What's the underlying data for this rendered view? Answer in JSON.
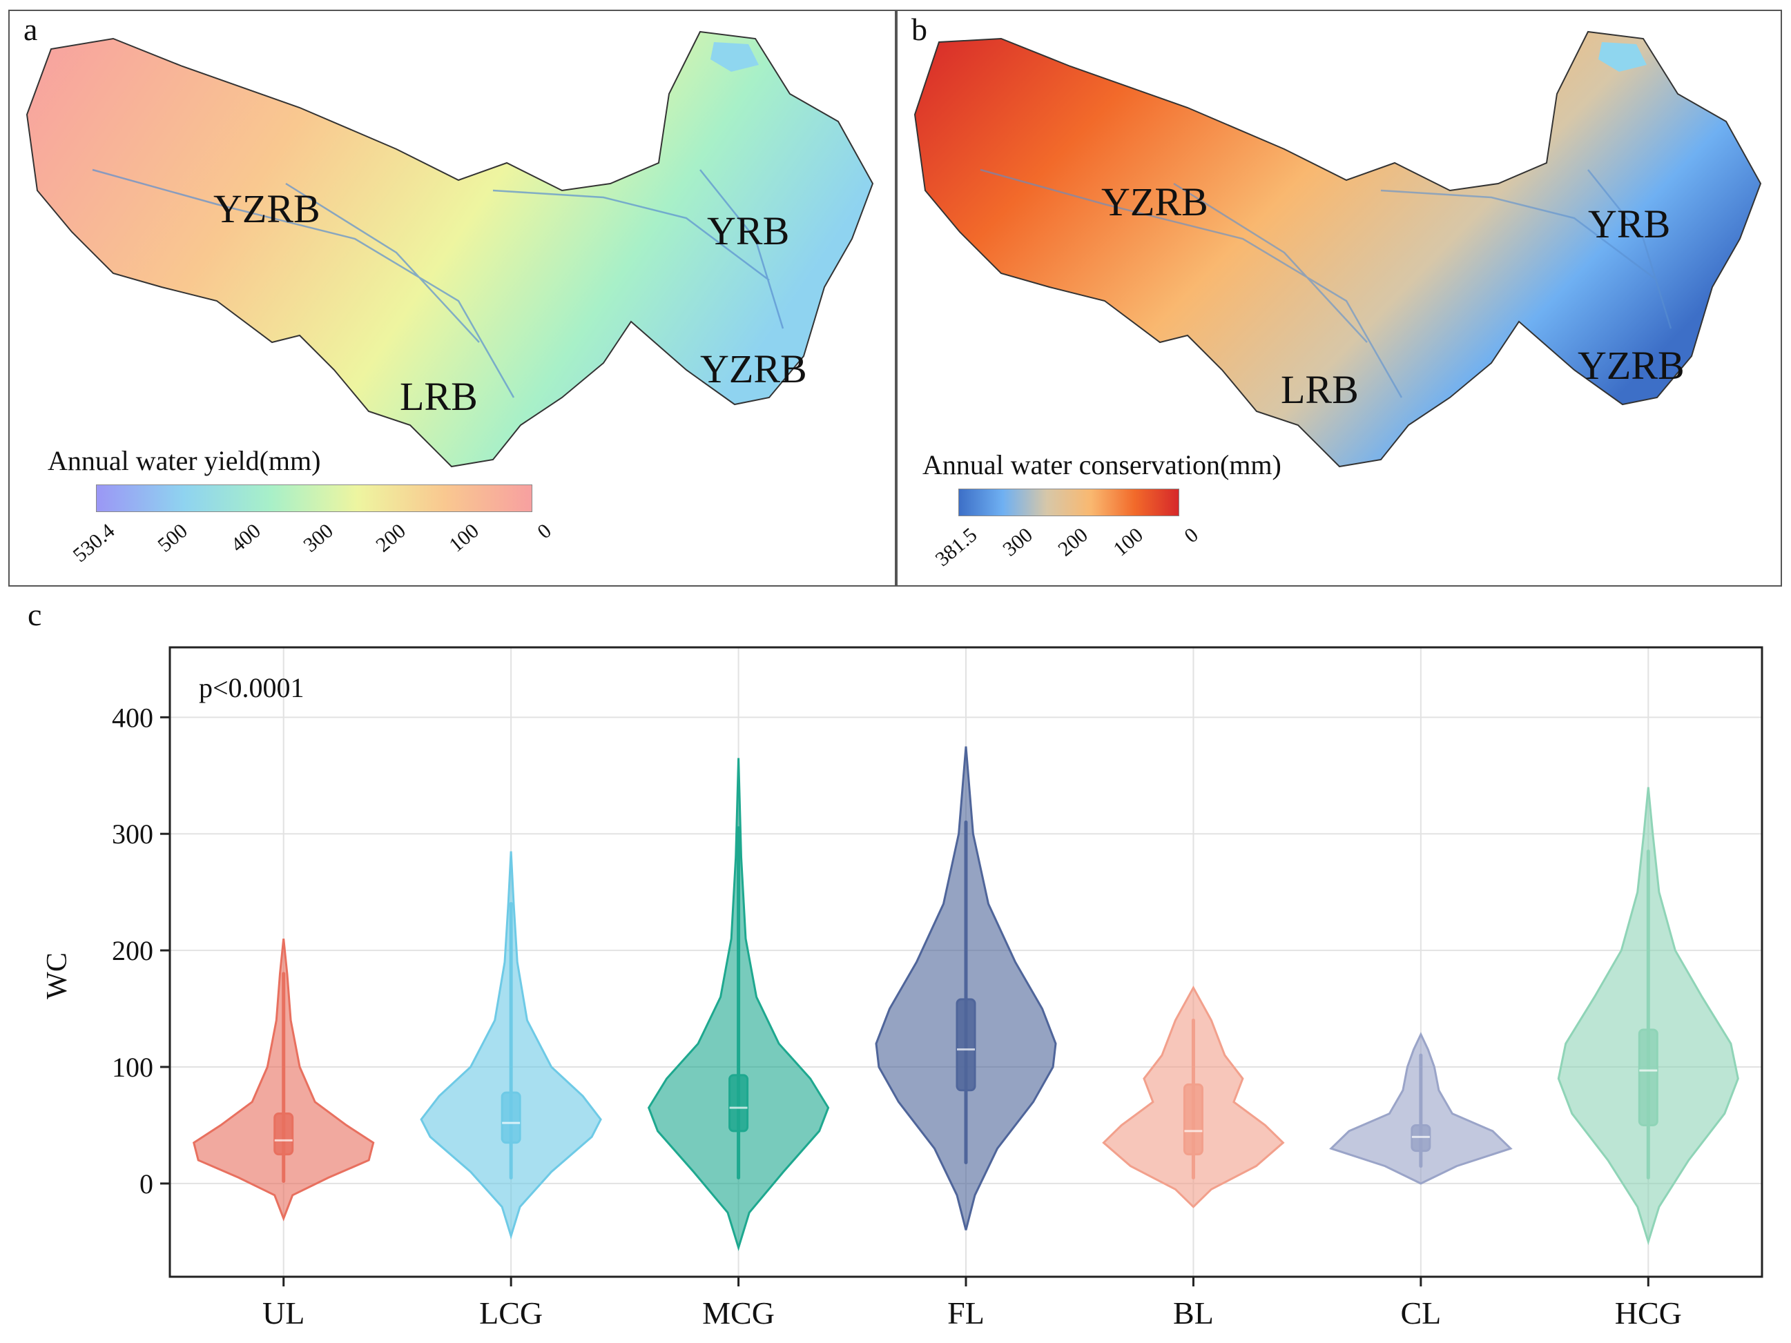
{
  "panel_a": {
    "letter": "a",
    "legend_title": "Annual water yield(mm)",
    "ticks": [
      "530.4",
      "500",
      "400",
      "300",
      "200",
      "100",
      "0"
    ],
    "gradient": [
      "#9b97f5",
      "#8fd3f0",
      "#a8f0c8",
      "#eef5a0",
      "#f9c890",
      "#f7a0a0"
    ],
    "regions": [
      "YZRB",
      "YRB",
      "YZRB",
      "LRB"
    ]
  },
  "panel_b": {
    "letter": "b",
    "legend_title": "Annual water conservation(mm)",
    "ticks": [
      "381.5",
      "300",
      "200",
      "100",
      "0"
    ],
    "gradient": [
      "#3d6fc7",
      "#6fb0f2",
      "#d7c7a8",
      "#f9b870",
      "#f26a2a",
      "#d6282a"
    ],
    "regions": [
      "YZRB",
      "YRB",
      "YZRB",
      "LRB"
    ]
  },
  "panel_c": {
    "letter": "c"
  },
  "chart_data": {
    "type": "violin",
    "annotation": "p<0.0001",
    "ylabel": "WC",
    "xlabel": "",
    "ylim": [
      -80,
      460
    ],
    "yticks": [
      0,
      100,
      200,
      300,
      400
    ],
    "categories": [
      "UL",
      "LCG",
      "MCG",
      "FL",
      "BL",
      "CL",
      "HCG"
    ],
    "series": [
      {
        "name": "UL",
        "color": "#e8705f",
        "min": -30,
        "max": 210,
        "q1": 25,
        "median": 37,
        "q3": 60,
        "whisker_low": 2,
        "whisker_high": 180,
        "profile": [
          [
            -30,
            0.0
          ],
          [
            -10,
            0.1
          ],
          [
            5,
            0.5
          ],
          [
            20,
            0.95
          ],
          [
            35,
            1.0
          ],
          [
            50,
            0.7
          ],
          [
            70,
            0.35
          ],
          [
            100,
            0.18
          ],
          [
            140,
            0.08
          ],
          [
            180,
            0.04
          ],
          [
            210,
            0.0
          ]
        ]
      },
      {
        "name": "LCG",
        "color": "#6ecae6",
        "min": -45,
        "max": 285,
        "q1": 35,
        "median": 52,
        "q3": 78,
        "whisker_low": 5,
        "whisker_high": 240,
        "profile": [
          [
            -45,
            0.0
          ],
          [
            -20,
            0.1
          ],
          [
            10,
            0.45
          ],
          [
            40,
            0.9
          ],
          [
            55,
            1.0
          ],
          [
            75,
            0.8
          ],
          [
            100,
            0.45
          ],
          [
            140,
            0.18
          ],
          [
            190,
            0.07
          ],
          [
            240,
            0.03
          ],
          [
            285,
            0.0
          ]
        ]
      },
      {
        "name": "MCG",
        "color": "#1ea88f",
        "min": -55,
        "max": 365,
        "q1": 45,
        "median": 65,
        "q3": 93,
        "whisker_low": 5,
        "whisker_high": 305,
        "profile": [
          [
            -55,
            0.0
          ],
          [
            -25,
            0.12
          ],
          [
            10,
            0.5
          ],
          [
            45,
            0.9
          ],
          [
            65,
            1.0
          ],
          [
            90,
            0.8
          ],
          [
            120,
            0.45
          ],
          [
            160,
            0.2
          ],
          [
            210,
            0.08
          ],
          [
            280,
            0.03
          ],
          [
            365,
            0.0
          ]
        ]
      },
      {
        "name": "FL",
        "color": "#4f659a",
        "min": -40,
        "max": 375,
        "q1": 80,
        "median": 115,
        "q3": 158,
        "whisker_low": 18,
        "whisker_high": 310,
        "profile": [
          [
            -40,
            0.0
          ],
          [
            -10,
            0.1
          ],
          [
            30,
            0.35
          ],
          [
            70,
            0.75
          ],
          [
            100,
            0.97
          ],
          [
            120,
            1.0
          ],
          [
            150,
            0.85
          ],
          [
            190,
            0.55
          ],
          [
            240,
            0.25
          ],
          [
            300,
            0.08
          ],
          [
            375,
            0.0
          ]
        ]
      },
      {
        "name": "BL",
        "color": "#f2a08c",
        "min": -20,
        "max": 168,
        "q1": 25,
        "median": 45,
        "q3": 85,
        "whisker_low": 5,
        "whisker_high": 140,
        "profile": [
          [
            -20,
            0.0
          ],
          [
            -5,
            0.2
          ],
          [
            15,
            0.7
          ],
          [
            35,
            1.0
          ],
          [
            50,
            0.8
          ],
          [
            70,
            0.45
          ],
          [
            90,
            0.55
          ],
          [
            110,
            0.35
          ],
          [
            140,
            0.2
          ],
          [
            168,
            0.0
          ]
        ]
      },
      {
        "name": "CL",
        "color": "#9aa4c8",
        "min": 0,
        "max": 128,
        "q1": 28,
        "median": 40,
        "q3": 50,
        "whisker_low": 15,
        "whisker_high": 110,
        "profile": [
          [
            0,
            0.0
          ],
          [
            15,
            0.4
          ],
          [
            30,
            1.0
          ],
          [
            45,
            0.8
          ],
          [
            60,
            0.35
          ],
          [
            80,
            0.2
          ],
          [
            100,
            0.15
          ],
          [
            115,
            0.08
          ],
          [
            128,
            0.0
          ]
        ]
      },
      {
        "name": "HCG",
        "color": "#8fd4b7",
        "min": -50,
        "max": 340,
        "q1": 50,
        "median": 97,
        "q3": 132,
        "whisker_low": 5,
        "whisker_high": 285,
        "profile": [
          [
            -50,
            0.0
          ],
          [
            -20,
            0.12
          ],
          [
            20,
            0.45
          ],
          [
            60,
            0.85
          ],
          [
            90,
            1.0
          ],
          [
            120,
            0.92
          ],
          [
            160,
            0.6
          ],
          [
            200,
            0.3
          ],
          [
            250,
            0.12
          ],
          [
            300,
            0.05
          ],
          [
            340,
            0.0
          ]
        ]
      }
    ]
  }
}
